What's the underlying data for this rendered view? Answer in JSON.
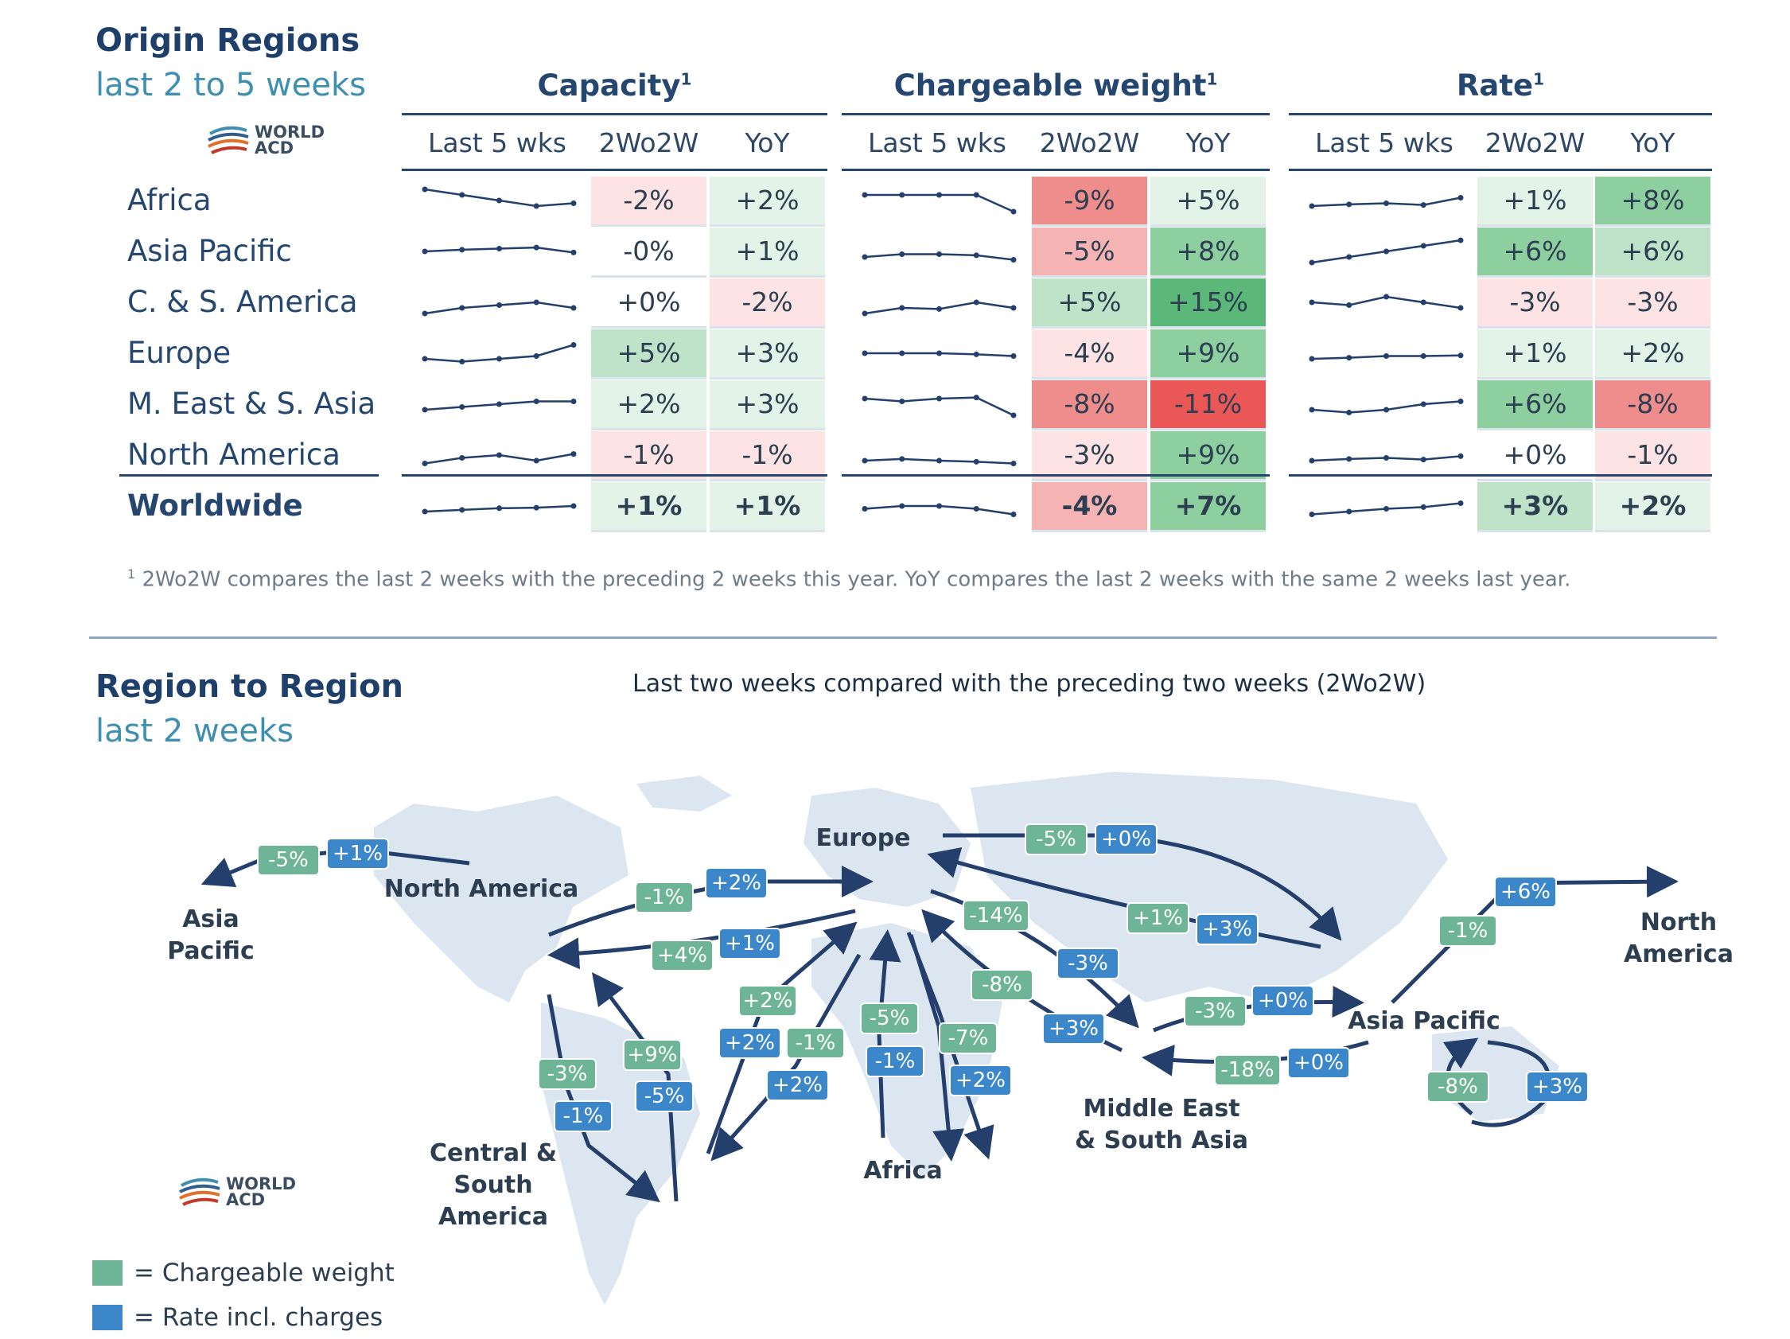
{
  "colors": {
    "red_strong": "#ef8c8c",
    "red_medium": "#f5b3b3",
    "red_light": "#fde3e3",
    "neutral": "#ffffff",
    "green_light": "#e3f3e7",
    "green_medium": "#bfe3c9",
    "green_strong": "#8ecfa0",
    "green_max": "#5cb878",
    "red_max": "#ea5757",
    "badge_green": "#6db596",
    "badge_blue": "#3b87c9",
    "arrow": "#243f6b",
    "map_land": "#dbe6f1"
  },
  "header": {
    "title": "Origin Regions",
    "subtitle": "last 2 to 5 weeks",
    "logo_line1": "WORLD",
    "logo_line2": "ACD"
  },
  "groups": {
    "capacity": "Capacity",
    "chargeable": "Chargeable weight",
    "rate": "Rate",
    "sup": "1"
  },
  "columns": {
    "last5": "Last 5 wks",
    "w2w": "2Wo2W",
    "yoy": "YoY"
  },
  "chart_data": {
    "type": "table",
    "rows": [
      {
        "region": "Africa",
        "capacity": {
          "spark": [
            5,
            4,
            3,
            2,
            2.5
          ],
          "w2w": "-2%",
          "yoy": "+2%",
          "w2w_c": "red_light",
          "yoy_c": "green_light"
        },
        "chargeable": {
          "spark": [
            4,
            4,
            4,
            4,
            1
          ],
          "w2w": "-9%",
          "yoy": "+5%",
          "w2w_c": "red_strong",
          "yoy_c": "green_light"
        },
        "rate": {
          "spark": [
            2,
            2.3,
            2.5,
            2.2,
            3.5
          ],
          "w2w": "+1%",
          "yoy": "+8%",
          "w2w_c": "green_light",
          "yoy_c": "green_strong"
        }
      },
      {
        "region": "Asia Pacific",
        "capacity": {
          "spark": [
            3,
            3.3,
            3.5,
            3.7,
            2.8
          ],
          "w2w": "-0%",
          "yoy": "+1%",
          "w2w_c": "neutral",
          "yoy_c": "green_light"
        },
        "chargeable": {
          "spark": [
            2,
            2.5,
            2.5,
            2.3,
            1.5
          ],
          "w2w": "-5%",
          "yoy": "+8%",
          "w2w_c": "red_medium",
          "yoy_c": "green_strong"
        },
        "rate": {
          "spark": [
            1,
            2,
            3,
            4,
            5
          ],
          "w2w": "+6%",
          "yoy": "+6%",
          "w2w_c": "green_strong",
          "yoy_c": "green_medium"
        }
      },
      {
        "region": "C. & S. America",
        "capacity": {
          "spark": [
            1,
            2,
            2.5,
            3,
            2
          ],
          "w2w": "+0%",
          "yoy": "-2%",
          "w2w_c": "neutral",
          "yoy_c": "red_light"
        },
        "chargeable": {
          "spark": [
            1,
            2,
            1.8,
            3,
            2
          ],
          "w2w": "+5%",
          "yoy": "+15%",
          "w2w_c": "green_medium",
          "yoy_c": "green_max"
        },
        "rate": {
          "spark": [
            3,
            2.5,
            4,
            3,
            2
          ],
          "w2w": "-3%",
          "yoy": "-3%",
          "w2w_c": "red_light",
          "yoy_c": "red_light"
        }
      },
      {
        "region": "Europe",
        "capacity": {
          "spark": [
            2,
            1.5,
            2,
            2.5,
            4.5
          ],
          "w2w": "+5%",
          "yoy": "+3%",
          "w2w_c": "green_medium",
          "yoy_c": "green_light"
        },
        "chargeable": {
          "spark": [
            3,
            3,
            3,
            2.8,
            2.5
          ],
          "w2w": "-4%",
          "yoy": "+9%",
          "w2w_c": "red_light",
          "yoy_c": "green_strong"
        },
        "rate": {
          "spark": [
            2,
            2.2,
            2.5,
            2.5,
            2.6
          ],
          "w2w": "+1%",
          "yoy": "+2%",
          "w2w_c": "green_light",
          "yoy_c": "green_light"
        }
      },
      {
        "region": "M. East & S. Asia",
        "capacity": {
          "spark": [
            2,
            2.5,
            3,
            3.5,
            3.5
          ],
          "w2w": "+2%",
          "yoy": "+3%",
          "w2w_c": "green_light",
          "yoy_c": "green_light"
        },
        "chargeable": {
          "spark": [
            4,
            3.5,
            4,
            4.2,
            1
          ],
          "w2w": "-8%",
          "yoy": "-11%",
          "w2w_c": "red_strong",
          "yoy_c": "red_max"
        },
        "rate": {
          "spark": [
            2,
            1.5,
            2,
            3,
            3.5
          ],
          "w2w": "+6%",
          "yoy": "-8%",
          "w2w_c": "green_strong",
          "yoy_c": "red_strong"
        }
      },
      {
        "region": "North America",
        "capacity": {
          "spark": [
            1.5,
            2.5,
            3,
            2,
            3.2
          ],
          "w2w": "-1%",
          "yoy": "-1%",
          "w2w_c": "red_light",
          "yoy_c": "red_light"
        },
        "chargeable": {
          "spark": [
            2,
            2.3,
            2,
            1.8,
            1.5
          ],
          "w2w": "-3%",
          "yoy": "+9%",
          "w2w_c": "red_light",
          "yoy_c": "green_strong"
        },
        "rate": {
          "spark": [
            2,
            2.3,
            2.5,
            2.2,
            2.8
          ],
          "w2w": "+0%",
          "yoy": "-1%",
          "w2w_c": "neutral",
          "yoy_c": "red_light"
        }
      },
      {
        "region": "Worldwide",
        "total": true,
        "capacity": {
          "spark": [
            2,
            2.3,
            2.6,
            2.7,
            3
          ],
          "w2w": "+1%",
          "yoy": "+1%",
          "w2w_c": "green_light",
          "yoy_c": "green_light"
        },
        "chargeable": {
          "spark": [
            2.5,
            3,
            3,
            2.5,
            1.5
          ],
          "w2w": "-4%",
          "yoy": "+7%",
          "w2w_c": "red_medium",
          "yoy_c": "green_strong"
        },
        "rate": {
          "spark": [
            1.5,
            2,
            2.5,
            2.8,
            3.5
          ],
          "w2w": "+3%",
          "yoy": "+2%",
          "w2w_c": "green_medium",
          "yoy_c": "green_light"
        }
      }
    ]
  },
  "footnote": {
    "sup": "1",
    "text": " 2Wo2W compares the last 2 weeks with the preceding 2 weeks this year. YoY compares the last 2 weeks with the same 2 weeks last year."
  },
  "section2": {
    "title": "Region to Region",
    "subtitle": "last 2 weeks",
    "map_caption": "Last two weeks compared with the preceding two weeks (2Wo2W)"
  },
  "map_labels": {
    "asia_pacific_left_1": "Asia",
    "asia_pacific_left_2": "Pacific",
    "north_america": "North America",
    "europe": "Europe",
    "cs_america_1": "Central & South",
    "cs_america_2": "America",
    "africa": "Africa",
    "mesa_1": "Middle East",
    "mesa_2": "& South Asia",
    "asia_pacific": "Asia Pacific",
    "north_america_right_1": "North",
    "north_america_right_2": "America"
  },
  "badges": [
    "-5%",
    "+1%",
    "-1%",
    "+2%",
    "+4%",
    "+1%",
    "-5%",
    "+0%",
    "+1%",
    "+3%",
    "-14%",
    "-3%",
    "-8%",
    "+3%",
    "-3%",
    "+0%",
    "-18%",
    "+0%",
    "+6%",
    "-1%",
    "-8%",
    "+3%",
    "+2%",
    "+2%",
    "-1%",
    "+2%",
    "-5%",
    "-1%",
    "-7%",
    "+2%",
    "+9%",
    "-5%",
    "-3%",
    "-1%"
  ],
  "legend": {
    "chargeable": "=  Chargeable weight",
    "rate": "=  Rate incl. charges"
  }
}
